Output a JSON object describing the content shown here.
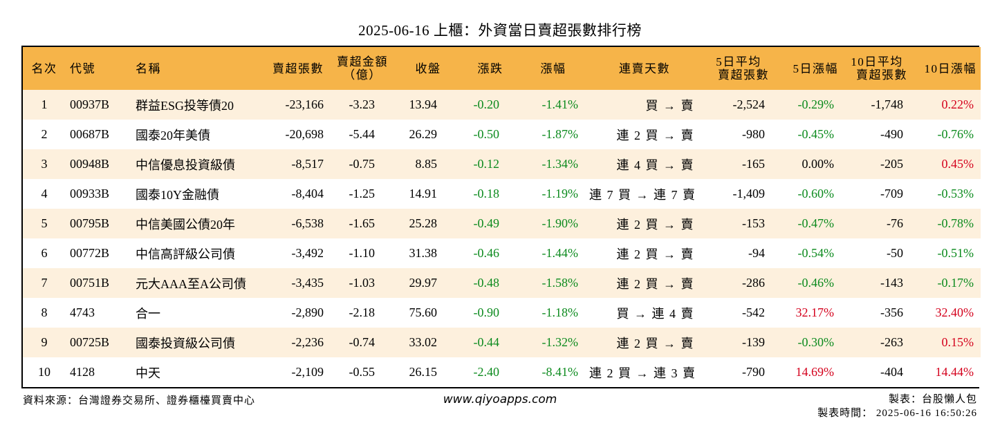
{
  "title": "2025-06-16 上櫃：外資當日賣超張數排行榜",
  "headers": {
    "rank": "名次",
    "code": "代號",
    "name": "名稱",
    "net_sell_lots": "賣超張數",
    "net_sell_amount_1": "賣超金額",
    "net_sell_amount_2": "（億）",
    "close": "收盤",
    "change": "漲跌",
    "change_pct": "漲幅",
    "streak": "連賣天數",
    "avg5_1": "5日平均",
    "avg5_2": "賣超張數",
    "pct5": "5日漲幅",
    "avg10_1": "10日平均",
    "avg10_2": "賣超張數",
    "pct10": "10日漲幅"
  },
  "rows": [
    {
      "rank": "1",
      "code": "00937B",
      "name": "群益ESG投等債20",
      "net_sell_lots": "-23,166",
      "net_sell_amount": "-3.23",
      "close": "13.94",
      "change": "-0.20",
      "change_pct": "-1.41%",
      "streak": "買 → 賣",
      "avg5": "-2,524",
      "pct5": "-0.29%",
      "avg10": "-1,748",
      "pct10": "0.22%"
    },
    {
      "rank": "2",
      "code": "00687B",
      "name": "國泰20年美債",
      "net_sell_lots": "-20,698",
      "net_sell_amount": "-5.44",
      "close": "26.29",
      "change": "-0.50",
      "change_pct": "-1.87%",
      "streak": "連 2 買 → 賣",
      "avg5": "-980",
      "pct5": "-0.45%",
      "avg10": "-490",
      "pct10": "-0.76%"
    },
    {
      "rank": "3",
      "code": "00948B",
      "name": "中信優息投資級債",
      "net_sell_lots": "-8,517",
      "net_sell_amount": "-0.75",
      "close": "8.85",
      "change": "-0.12",
      "change_pct": "-1.34%",
      "streak": "連 4 買 → 賣",
      "avg5": "-165",
      "pct5": "0.00%",
      "avg10": "-205",
      "pct10": "0.45%"
    },
    {
      "rank": "4",
      "code": "00933B",
      "name": "國泰10Y金融債",
      "net_sell_lots": "-8,404",
      "net_sell_amount": "-1.25",
      "close": "14.91",
      "change": "-0.18",
      "change_pct": "-1.19%",
      "streak": "連 7 買 → 連 7 賣",
      "avg5": "-1,409",
      "pct5": "-0.60%",
      "avg10": "-709",
      "pct10": "-0.53%"
    },
    {
      "rank": "5",
      "code": "00795B",
      "name": "中信美國公債20年",
      "net_sell_lots": "-6,538",
      "net_sell_amount": "-1.65",
      "close": "25.28",
      "change": "-0.49",
      "change_pct": "-1.90%",
      "streak": "連 2 買 → 賣",
      "avg5": "-153",
      "pct5": "-0.47%",
      "avg10": "-76",
      "pct10": "-0.78%"
    },
    {
      "rank": "6",
      "code": "00772B",
      "name": "中信高評級公司債",
      "net_sell_lots": "-3,492",
      "net_sell_amount": "-1.10",
      "close": "31.38",
      "change": "-0.46",
      "change_pct": "-1.44%",
      "streak": "連 2 買 → 賣",
      "avg5": "-94",
      "pct5": "-0.54%",
      "avg10": "-50",
      "pct10": "-0.51%"
    },
    {
      "rank": "7",
      "code": "00751B",
      "name": "元大AAA至A公司債",
      "net_sell_lots": "-3,435",
      "net_sell_amount": "-1.03",
      "close": "29.97",
      "change": "-0.48",
      "change_pct": "-1.58%",
      "streak": "連 2 買 → 賣",
      "avg5": "-286",
      "pct5": "-0.46%",
      "avg10": "-143",
      "pct10": "-0.17%"
    },
    {
      "rank": "8",
      "code": "4743",
      "name": "合一",
      "net_sell_lots": "-2,890",
      "net_sell_amount": "-2.18",
      "close": "75.60",
      "change": "-0.90",
      "change_pct": "-1.18%",
      "streak": "買 → 連 4 賣",
      "avg5": "-542",
      "pct5": "32.17%",
      "avg10": "-356",
      "pct10": "32.40%"
    },
    {
      "rank": "9",
      "code": "00725B",
      "name": "國泰投資級公司債",
      "net_sell_lots": "-2,236",
      "net_sell_amount": "-0.74",
      "close": "33.02",
      "change": "-0.44",
      "change_pct": "-1.32%",
      "streak": "連 2 買 → 賣",
      "avg5": "-139",
      "pct5": "-0.30%",
      "avg10": "-263",
      "pct10": "0.15%"
    },
    {
      "rank": "10",
      "code": "4128",
      "name": "中天",
      "net_sell_lots": "-2,109",
      "net_sell_amount": "-0.55",
      "close": "26.15",
      "change": "-2.40",
      "change_pct": "-8.41%",
      "streak": "連 2 買 → 連 3 賣",
      "avg5": "-790",
      "pct5": "14.69%",
      "avg10": "-404",
      "pct10": "14.44%"
    }
  ],
  "footer": {
    "source": "資料來源：台灣證券交易所、證券櫃檯買賣中心",
    "url": "www.qiyoapps.com",
    "author": "製表：台股懶人包",
    "timestamp": "製表時間： 2025-06-16 16:50:26"
  },
  "colors": {
    "header_bg": "#f6b449",
    "row_alt_bg": "#fdf0dd",
    "positive": "#d4001c",
    "negative": "#0b8a1d"
  }
}
